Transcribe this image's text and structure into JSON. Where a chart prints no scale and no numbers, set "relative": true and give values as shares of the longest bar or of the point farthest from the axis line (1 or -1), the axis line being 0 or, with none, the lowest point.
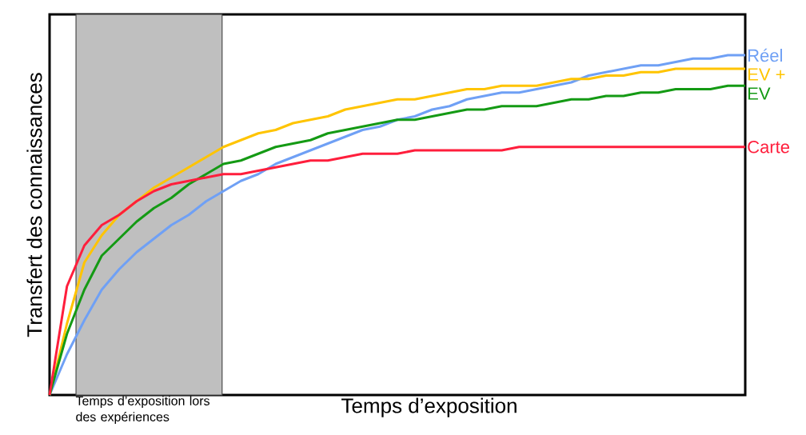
{
  "chart_data": {
    "type": "line",
    "relative": true,
    "xlabel": "Temps d’exposition",
    "ylabel": "Transfert des connaissances",
    "categories": [
      null,
      null,
      null,
      null,
      null,
      null,
      null,
      null,
      null,
      null,
      null,
      null,
      null,
      null,
      null,
      null,
      null,
      null,
      null,
      null,
      null,
      null,
      null,
      null,
      null,
      null,
      null,
      null,
      null,
      null,
      null,
      null,
      null,
      null,
      null,
      null,
      null,
      null,
      null,
      null,
      null
    ],
    "annotations": [
      "Temps d’exposition lors des expériences"
    ],
    "series": [
      {
        "name": "Réel",
        "color": "#6fa0f5",
        "values": [
          0,
          0.12,
          0.22,
          0.31,
          0.37,
          0.42,
          0.46,
          0.5,
          0.53,
          0.57,
          0.6,
          0.63,
          0.65,
          0.68,
          0.7,
          0.72,
          0.74,
          0.76,
          0.78,
          0.79,
          0.81,
          0.82,
          0.84,
          0.85,
          0.87,
          0.88,
          0.89,
          0.89,
          0.9,
          0.91,
          0.92,
          0.94,
          0.95,
          0.96,
          0.97,
          0.97,
          0.98,
          0.99,
          0.99,
          1.0,
          1.0
        ]
      },
      {
        "name": "EV +",
        "color": "#ffc400",
        "values": [
          0,
          0.21,
          0.39,
          0.47,
          0.53,
          0.57,
          0.61,
          0.64,
          0.67,
          0.7,
          0.73,
          0.75,
          0.77,
          0.78,
          0.8,
          0.81,
          0.82,
          0.84,
          0.85,
          0.86,
          0.87,
          0.87,
          0.88,
          0.89,
          0.9,
          0.9,
          0.91,
          0.91,
          0.91,
          0.92,
          0.93,
          0.93,
          0.94,
          0.94,
          0.95,
          0.95,
          0.96,
          0.96,
          0.96,
          0.96,
          0.96
        ]
      },
      {
        "name": "EV",
        "color": "#149a14",
        "values": [
          0,
          0.18,
          0.31,
          0.41,
          0.46,
          0.51,
          0.55,
          0.58,
          0.62,
          0.65,
          0.68,
          0.69,
          0.71,
          0.73,
          0.74,
          0.75,
          0.77,
          0.78,
          0.79,
          0.8,
          0.81,
          0.81,
          0.82,
          0.83,
          0.84,
          0.84,
          0.85,
          0.85,
          0.85,
          0.86,
          0.87,
          0.87,
          0.88,
          0.88,
          0.89,
          0.89,
          0.9,
          0.9,
          0.9,
          0.91,
          0.91
        ]
      },
      {
        "name": "Carte",
        "color": "#ff1e3c",
        "values": [
          0,
          0.32,
          0.44,
          0.5,
          0.53,
          0.57,
          0.6,
          0.62,
          0.63,
          0.64,
          0.65,
          0.65,
          0.66,
          0.67,
          0.68,
          0.69,
          0.69,
          0.7,
          0.71,
          0.71,
          0.71,
          0.72,
          0.72,
          0.72,
          0.72,
          0.72,
          0.72,
          0.73,
          0.73,
          0.73,
          0.73,
          0.73,
          0.73,
          0.73,
          0.73,
          0.73,
          0.73,
          0.73,
          0.73,
          0.73,
          0.73
        ]
      }
    ]
  }
}
